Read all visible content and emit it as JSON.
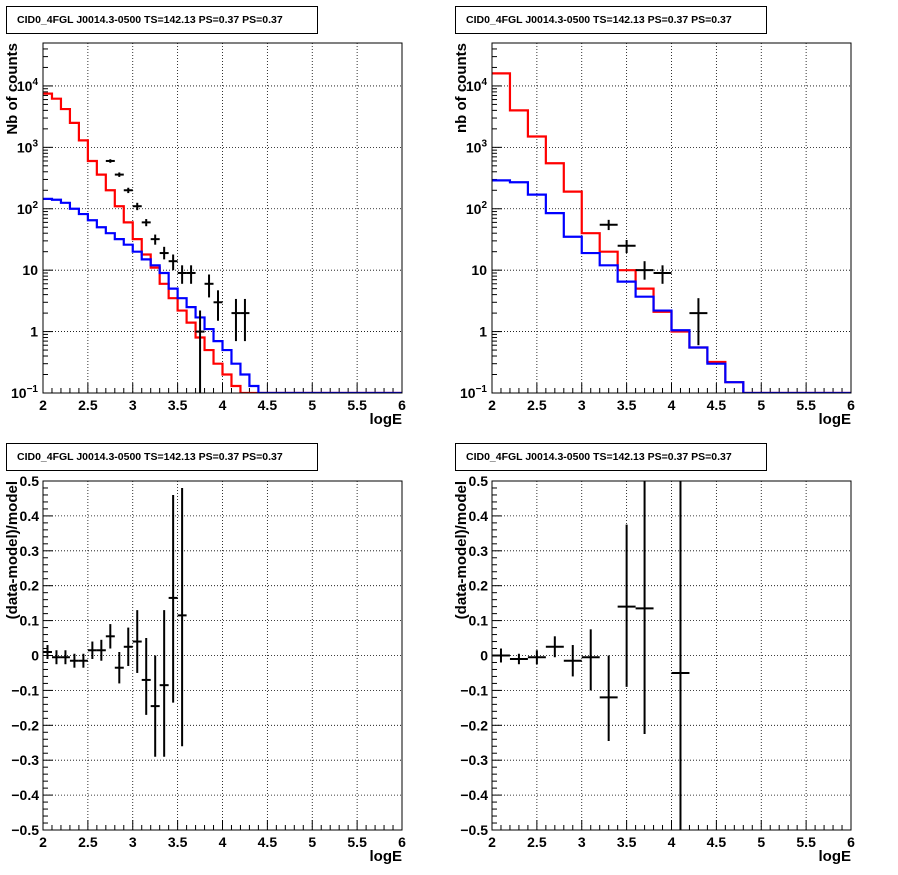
{
  "panels": [
    {
      "title": "CID0_4FGL J0014.3-0500 TS=142.13 PS=0.37 PS=0.37"
    },
    {
      "title": "CID0_4FGL J0014.3-0500 TS=142.13 PS=0.37 PS=0.37"
    },
    {
      "title": "CID0_4FGL J0014.3-0500 TS=142.13 PS=0.37 PS=0.37"
    },
    {
      "title": "CID0_4FGL J0014.3-0500 TS=142.13 PS=0.37 PS=0.37"
    }
  ],
  "colors": {
    "model_total": "#ff0000",
    "model_source": "#0000ff",
    "data": "#000000"
  },
  "chart_data": [
    {
      "type": "line",
      "title": "CID0_4FGL J0014.3-0500 TS=142.13 PS=0.37 PS=0.37",
      "xlabel": "logE",
      "ylabel": "Nb of counts",
      "xlim": [
        2,
        6
      ],
      "ylim": [
        0.1,
        50000
      ],
      "yscale": "log",
      "grid": true,
      "x_ticks": [
        "2",
        "2.5",
        "3",
        "3.5",
        "4",
        "4.5",
        "5",
        "5.5",
        "6"
      ],
      "y_ticks": [
        "10^-1",
        "1",
        "10",
        "10^2",
        "10^3",
        "10^4"
      ],
      "bin_width": 0.1,
      "bin_edges_start": 2.0,
      "series": [
        {
          "color": "#ff0000",
          "style": "step",
          "values": [
            7500,
            6200,
            4200,
            2500,
            1300,
            600,
            360,
            200,
            110,
            60,
            32,
            18,
            11,
            6,
            3.5,
            2.2,
            1.4,
            0.8,
            0.5,
            0.3,
            0.2,
            0.13,
            0.1,
            0.1,
            0.1,
            0.1,
            0.1,
            0.1,
            0.1,
            0.1,
            0.1,
            0.1,
            0.1,
            0.1,
            0.1,
            0.1,
            0.1,
            0.1,
            0.1,
            0.1
          ]
        },
        {
          "color": "#0000ff",
          "style": "step",
          "values": [
            145,
            140,
            125,
            100,
            82,
            65,
            50,
            40,
            32,
            26,
            20,
            15,
            12,
            9,
            5,
            3.5,
            2.5,
            1.7,
            1.1,
            0.7,
            0.5,
            0.3,
            0.2,
            0.13,
            0.1,
            0.1,
            0.1,
            0.1,
            0.1,
            0.1,
            0.1,
            0.1,
            0.1,
            0.1,
            0.1,
            0.1,
            0.1,
            0.1,
            0.1,
            0.1
          ]
        }
      ],
      "data_points": [
        {
          "x": 2.75,
          "y": 600,
          "ylo": 560,
          "yhi": 640
        },
        {
          "x": 2.85,
          "y": 360,
          "ylo": 330,
          "yhi": 390
        },
        {
          "x": 2.95,
          "y": 200,
          "ylo": 180,
          "yhi": 220
        },
        {
          "x": 3.05,
          "y": 110,
          "ylo": 95,
          "yhi": 125
        },
        {
          "x": 3.15,
          "y": 60,
          "ylo": 52,
          "yhi": 68
        },
        {
          "x": 3.25,
          "y": 32,
          "ylo": 26,
          "yhi": 38
        },
        {
          "x": 3.35,
          "y": 19,
          "ylo": 15,
          "yhi": 24
        },
        {
          "x": 3.45,
          "y": 14,
          "ylo": 10,
          "yhi": 18
        },
        {
          "x": 3.55,
          "y": 9,
          "ylo": 6,
          "yhi": 12
        },
        {
          "x": 3.65,
          "y": 9,
          "ylo": 6,
          "yhi": 12
        },
        {
          "x": 3.75,
          "y": 1,
          "ylo": 0.1,
          "yhi": 2.2
        },
        {
          "x": 3.85,
          "y": 6,
          "ylo": 3.6,
          "yhi": 8.5
        },
        {
          "x": 3.95,
          "y": 3,
          "ylo": 1.5,
          "yhi": 4.7
        },
        {
          "x": 4.15,
          "y": 2,
          "ylo": 0.7,
          "yhi": 3.4
        },
        {
          "x": 4.25,
          "y": 2,
          "ylo": 0.7,
          "yhi": 3.4
        }
      ]
    },
    {
      "type": "line",
      "title": "CID0_4FGL J0014.3-0500 TS=142.13 PS=0.37 PS=0.37",
      "xlabel": "logE",
      "ylabel": "nb of counts",
      "xlim": [
        2,
        6
      ],
      "ylim": [
        0.1,
        50000
      ],
      "yscale": "log",
      "grid": true,
      "x_ticks": [
        "2",
        "2.5",
        "3",
        "3.5",
        "4",
        "4.5",
        "5",
        "5.5",
        "6"
      ],
      "y_ticks": [
        "10^-1",
        "1",
        "10",
        "10^2",
        "10^3",
        "10^4"
      ],
      "bin_width": 0.2,
      "bin_edges_start": 2.0,
      "series": [
        {
          "color": "#ff0000",
          "style": "step",
          "values": [
            16000,
            4000,
            1500,
            550,
            190,
            40,
            20,
            10,
            5,
            2.1,
            1.0,
            0.55,
            0.32,
            0.15,
            0.1,
            0.1,
            0.1,
            0.1,
            0.1,
            0.1
          ]
        },
        {
          "color": "#0000ff",
          "style": "step",
          "values": [
            290,
            270,
            170,
            85,
            35,
            19,
            12,
            6.5,
            3.7,
            2.2,
            1.05,
            0.55,
            0.3,
            0.15,
            0.1,
            0.1,
            0.1,
            0.1,
            0.1,
            0.1
          ]
        }
      ],
      "data_points": [
        {
          "x": 3.3,
          "y": 55,
          "ylo": 45,
          "yhi": 66
        },
        {
          "x": 3.5,
          "y": 25,
          "ylo": 19,
          "yhi": 31
        },
        {
          "x": 3.7,
          "y": 10,
          "ylo": 7,
          "yhi": 14
        },
        {
          "x": 3.9,
          "y": 9,
          "ylo": 6,
          "yhi": 12
        },
        {
          "x": 4.3,
          "y": 2,
          "ylo": 0.6,
          "yhi": 3.5
        }
      ]
    },
    {
      "type": "scatter",
      "title": "CID0_4FGL J0014.3-0500 TS=142.13 PS=0.37 PS=0.37",
      "xlabel": "logE",
      "ylabel": "(data-model)/model",
      "xlim": [
        2,
        6
      ],
      "ylim": [
        -0.5,
        0.5
      ],
      "grid": true,
      "x_ticks": [
        "2",
        "2.5",
        "3",
        "3.5",
        "4",
        "4.5",
        "5",
        "5.5",
        "6"
      ],
      "y_ticks": [
        "−0.5",
        "−0.4",
        "−0.3",
        "−0.2",
        "−0.1",
        "0",
        "0.1",
        "0.2",
        "0.3",
        "0.4",
        "0.5"
      ],
      "points": [
        {
          "x": 2.05,
          "y": 0.01,
          "ylo": -0.01,
          "yhi": 0.03,
          "xerr": 0.05
        },
        {
          "x": 2.15,
          "y": -0.005,
          "ylo": -0.025,
          "yhi": 0.015,
          "xerr": 0.05
        },
        {
          "x": 2.25,
          "y": -0.005,
          "ylo": -0.025,
          "yhi": 0.015,
          "xerr": 0.05
        },
        {
          "x": 2.35,
          "y": -0.015,
          "ylo": -0.035,
          "yhi": 0.005,
          "xerr": 0.05
        },
        {
          "x": 2.45,
          "y": -0.015,
          "ylo": -0.035,
          "yhi": 0.005,
          "xerr": 0.05
        },
        {
          "x": 2.55,
          "y": 0.015,
          "ylo": -0.01,
          "yhi": 0.04,
          "xerr": 0.05
        },
        {
          "x": 2.65,
          "y": 0.015,
          "ylo": -0.015,
          "yhi": 0.045,
          "xerr": 0.05
        },
        {
          "x": 2.75,
          "y": 0.055,
          "ylo": 0.02,
          "yhi": 0.09,
          "xerr": 0.05
        },
        {
          "x": 2.85,
          "y": -0.035,
          "ylo": -0.08,
          "yhi": 0.01,
          "xerr": 0.05
        },
        {
          "x": 2.95,
          "y": 0.025,
          "ylo": -0.03,
          "yhi": 0.08,
          "xerr": 0.05
        },
        {
          "x": 3.05,
          "y": 0.04,
          "ylo": -0.05,
          "yhi": 0.13,
          "xerr": 0.05
        },
        {
          "x": 3.15,
          "y": -0.07,
          "ylo": -0.17,
          "yhi": 0.05,
          "xerr": 0.05
        },
        {
          "x": 3.25,
          "y": -0.145,
          "ylo": -0.29,
          "yhi": 0.0,
          "xerr": 0.05
        },
        {
          "x": 3.35,
          "y": -0.085,
          "ylo": -0.29,
          "yhi": 0.13,
          "xerr": 0.05
        },
        {
          "x": 3.45,
          "y": 0.165,
          "ylo": -0.135,
          "yhi": 0.46,
          "xerr": 0.05
        },
        {
          "x": 3.55,
          "y": 0.115,
          "ylo": -0.26,
          "yhi": 0.48,
          "xerr": 0.05
        }
      ]
    },
    {
      "type": "scatter",
      "title": "CID0_4FGL J0014.3-0500 TS=142.13 PS=0.37 PS=0.37",
      "xlabel": "logE",
      "ylabel": "(data-model)/model",
      "xlim": [
        2,
        6
      ],
      "ylim": [
        -0.5,
        0.5
      ],
      "grid": true,
      "x_ticks": [
        "2",
        "2.5",
        "3",
        "3.5",
        "4",
        "4.5",
        "5",
        "5.5",
        "6"
      ],
      "y_ticks": [
        "−0.5",
        "−0.4",
        "−0.3",
        "−0.2",
        "−0.1",
        "0",
        "0.1",
        "0.2",
        "0.3",
        "0.4",
        "0.5"
      ],
      "points": [
        {
          "x": 2.1,
          "y": 0.0,
          "ylo": -0.02,
          "yhi": 0.02,
          "xerr": 0.1
        },
        {
          "x": 2.3,
          "y": -0.01,
          "ylo": -0.025,
          "yhi": 0.005,
          "xerr": 0.1
        },
        {
          "x": 2.5,
          "y": -0.005,
          "ylo": -0.025,
          "yhi": 0.015,
          "xerr": 0.1
        },
        {
          "x": 2.7,
          "y": 0.025,
          "ylo": -0.005,
          "yhi": 0.055,
          "xerr": 0.1
        },
        {
          "x": 2.9,
          "y": -0.015,
          "ylo": -0.06,
          "yhi": 0.03,
          "xerr": 0.1
        },
        {
          "x": 3.1,
          "y": -0.005,
          "ylo": -0.1,
          "yhi": 0.075,
          "xerr": 0.1
        },
        {
          "x": 3.3,
          "y": -0.12,
          "ylo": -0.245,
          "yhi": 0.0,
          "xerr": 0.1
        },
        {
          "x": 3.5,
          "y": 0.14,
          "ylo": -0.09,
          "yhi": 0.375,
          "xerr": 0.1
        },
        {
          "x": 3.7,
          "y": 0.135,
          "ylo": -0.225,
          "yhi": 0.5,
          "xerr": 0.1
        },
        {
          "x": 4.1,
          "y": -0.05,
          "ylo": -0.5,
          "yhi": 0.5,
          "xerr": 0.1
        }
      ]
    }
  ]
}
